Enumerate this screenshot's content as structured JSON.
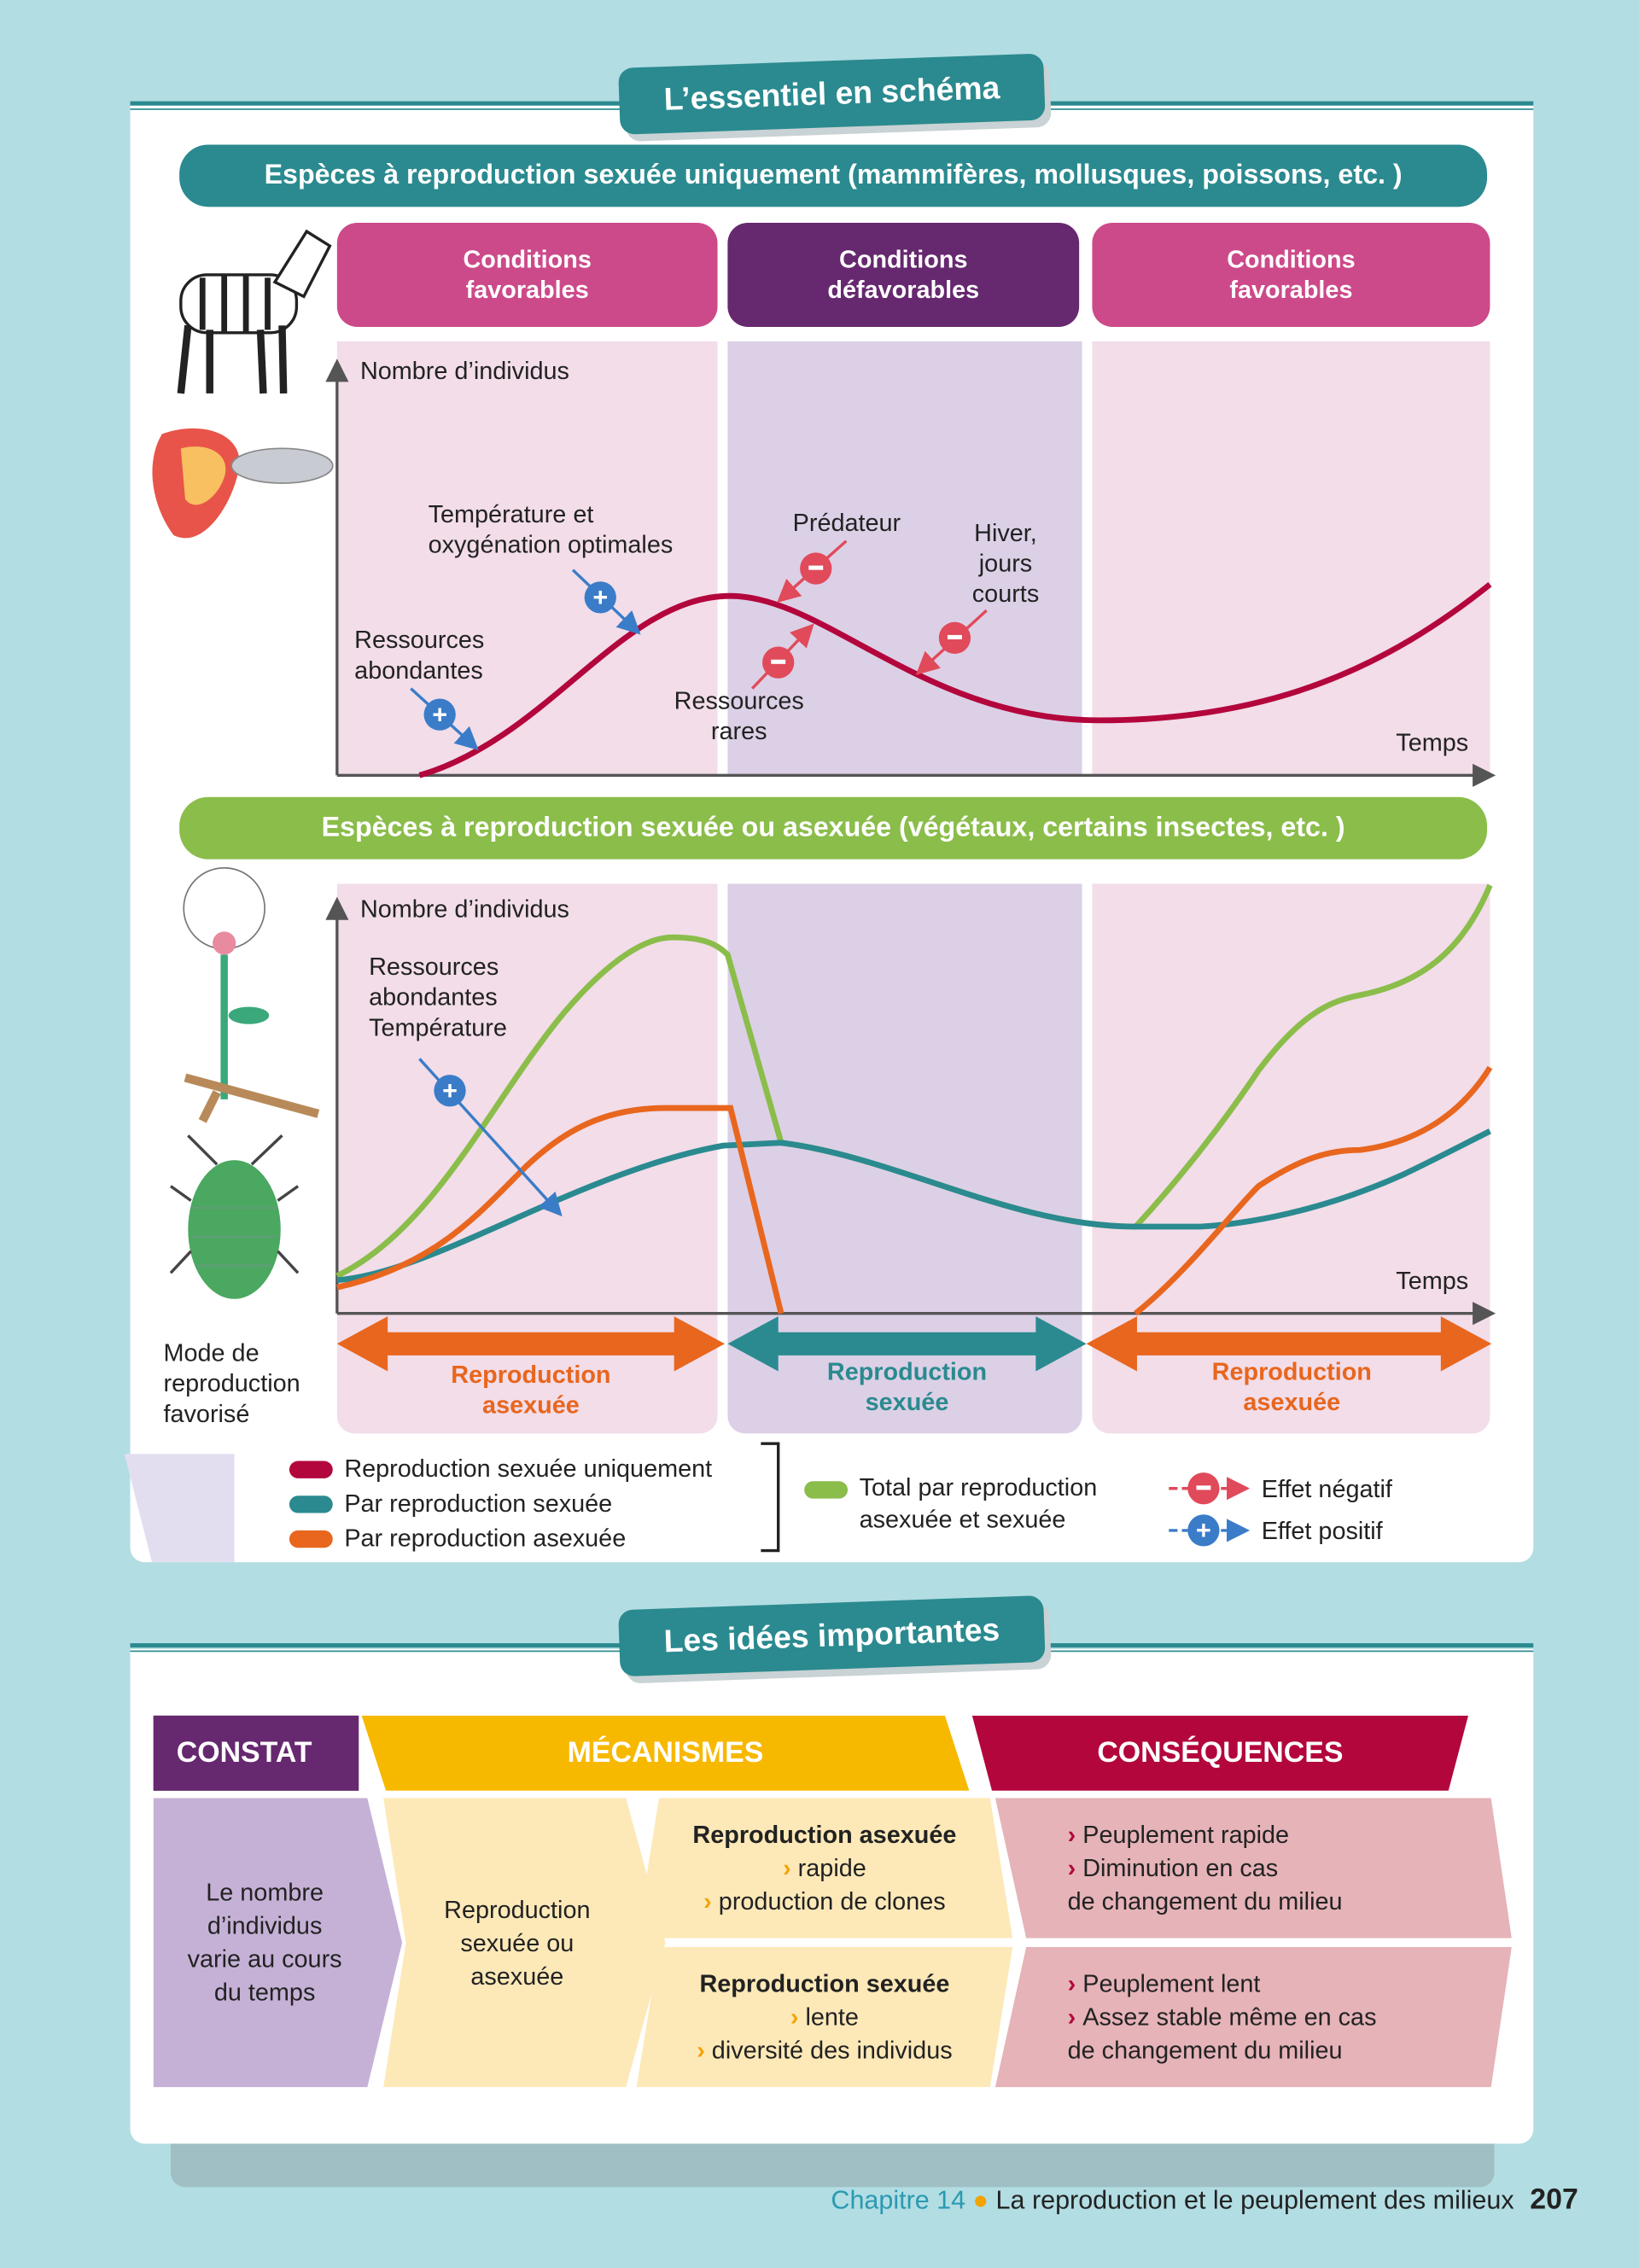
{
  "section1_title": "L’essentiel en schéma",
  "banner1": "Espèces à reproduction sexuée uniquement (mammifères, mollusques, poissons, etc. )",
  "conditions": [
    "Conditions\nfavorables",
    "Conditions\ndéfavorables",
    "Conditions\nfavorables"
  ],
  "chart1": {
    "ylabel": "Nombre d’individus",
    "xlabel": "Temps",
    "labels": {
      "ressources_abondantes": "Ressources\nabondantes",
      "temperature": "Température et\noxygénation optimales",
      "predateur": "Prédateur",
      "hiver": "Hiver,\njours\ncourts",
      "ressources_rares": "Ressources\nrares"
    }
  },
  "banner2": "Espèces à reproduction sexuée ou asexuée (végétaux, certains insectes, etc. )",
  "chart2": {
    "ylabel": "Nombre d’individus",
    "xlabel": "Temps",
    "annotation": "Ressources\nabondantes\nTempérature"
  },
  "mode_label": "Mode de\nreproduction\nfavorisé",
  "modes": [
    "Reproduction\nasexuée",
    "Reproduction\nsexuée",
    "Reproduction\nasexuée"
  ],
  "legend": {
    "sexuee_uniquement": "Reproduction sexuée uniquement",
    "par_sexuee": "Par reproduction sexuée",
    "par_asexuee": "Par reproduction asexuée",
    "total": "Total par reproduction\nasexuée et sexuée",
    "negatif": "Effet négatif",
    "positif": "Effet positif"
  },
  "colors": {
    "sexuee_uniquement": "#b3063c",
    "sexuee": "#2a8a8f",
    "asexuee": "#e8661e",
    "total": "#8bbd4a",
    "negatif": "#e04a5a",
    "positif": "#3a7cc8"
  },
  "section2_title": "Les idées importantes",
  "table": {
    "headers": [
      "CONSTAT",
      "MÉCANISMES",
      "CONSÉQUENCES"
    ],
    "constat": "Le nombre\nd’individus\nvarie au cours\ndu temps",
    "mecanisme": "Reproduction\nsexuée ou\nasexuée",
    "asexuee": {
      "title": "Reproduction asexuée",
      "items": [
        "rapide",
        "production de clones"
      ]
    },
    "sexuee": {
      "title": "Reproduction sexuée",
      "items": [
        "lente",
        "diversité des individus"
      ]
    },
    "consequences_asexuee": [
      "Peuplement rapide",
      "Diminution en cas",
      "de changement du milieu"
    ],
    "consequences_sexuee": [
      "Peuplement lent",
      "Assez stable même en cas",
      "de changement du milieu"
    ]
  },
  "footer": {
    "chapter": "Chapitre 14",
    "title": "La reproduction et le peuplement des milieux",
    "page": "207"
  }
}
